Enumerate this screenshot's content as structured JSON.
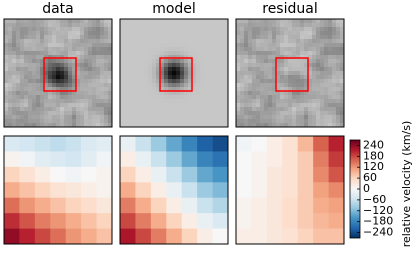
{
  "chart_data": [
    {
      "type": "image",
      "title": "data",
      "box_color": "#ff0000"
    },
    {
      "type": "image",
      "title": "model",
      "box_color": "#ff0000"
    },
    {
      "type": "image",
      "title": "residual",
      "box_color": "#ff0000"
    },
    {
      "type": "heatmap",
      "values": [
        [
          -40,
          -50,
          -60,
          -70,
          -60,
          -40,
          -30
        ],
        [
          10,
          -10,
          -30,
          -40,
          -50,
          -30,
          -10
        ],
        [
          60,
          40,
          20,
          0,
          -10,
          0,
          10
        ],
        [
          100,
          80,
          60,
          40,
          30,
          20,
          10
        ],
        [
          150,
          120,
          100,
          80,
          60,
          50,
          30
        ],
        [
          200,
          170,
          140,
          120,
          100,
          80,
          60
        ],
        [
          240,
          210,
          180,
          150,
          120,
          100,
          80
        ]
      ]
    },
    {
      "type": "heatmap",
      "values": [
        [
          -20,
          -60,
          -100,
          -140,
          -180,
          -220,
          -240
        ],
        [
          20,
          -20,
          -60,
          -100,
          -140,
          -180,
          -200
        ],
        [
          60,
          20,
          -20,
          -60,
          -100,
          -140,
          -160
        ],
        [
          100,
          60,
          20,
          -20,
          -60,
          -100,
          -120
        ],
        [
          140,
          100,
          60,
          20,
          -20,
          -60,
          -80
        ],
        [
          180,
          140,
          100,
          60,
          20,
          -20,
          -40
        ],
        [
          220,
          180,
          140,
          100,
          60,
          20,
          0
        ]
      ]
    },
    {
      "type": "heatmap",
      "values": [
        [
          -10,
          0,
          20,
          40,
          90,
          160,
          210
        ],
        [
          0,
          10,
          20,
          40,
          70,
          140,
          190
        ],
        [
          0,
          10,
          30,
          40,
          70,
          130,
          170
        ],
        [
          0,
          10,
          30,
          40,
          70,
          110,
          130
        ],
        [
          10,
          20,
          30,
          50,
          70,
          100,
          110
        ],
        [
          10,
          20,
          30,
          50,
          70,
          90,
          100
        ],
        [
          20,
          20,
          30,
          40,
          60,
          80,
          80
        ]
      ]
    },
    {
      "type": "colorbar",
      "label": "relative velocity (km/s)",
      "clim": [
        -270,
        270
      ],
      "colors": [
        "#053061",
        "#2166ac",
        "#4393c3",
        "#92c5de",
        "#d1e5f0",
        "#f7f7f7",
        "#fddbc7",
        "#f4a582",
        "#d6604d",
        "#b2182b",
        "#67001f"
      ],
      "ticks": [
        240,
        180,
        120,
        60,
        0,
        {
          "value": -60,
          "label": "−60"
        },
        {
          "value": -120,
          "label": "−120"
        },
        {
          "value": -180,
          "label": "−180"
        },
        {
          "value": -240,
          "label": "−240"
        }
      ]
    }
  ]
}
